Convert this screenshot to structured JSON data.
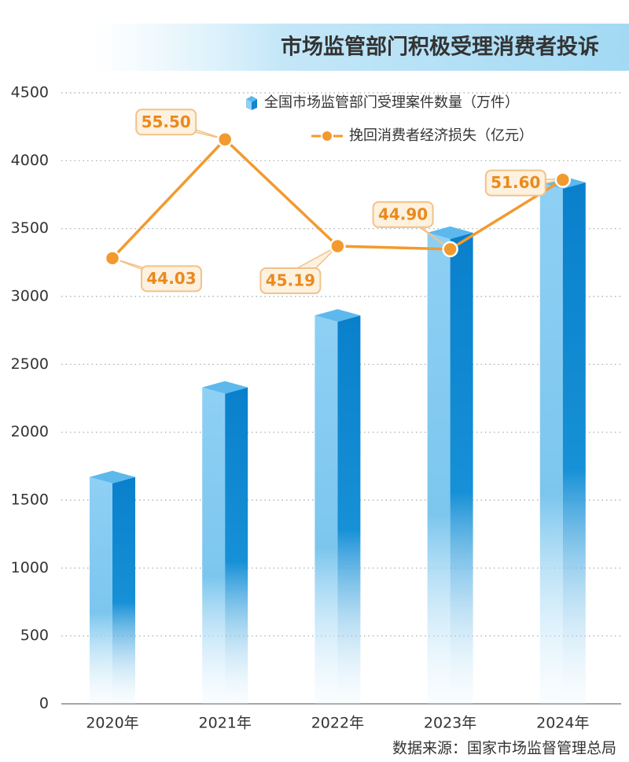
{
  "chart_data": {
    "type": "bar",
    "title": "市场监管部门积极受理消费者投诉",
    "source": "数据来源：国家市场监督管理总局",
    "categories": [
      "2020年",
      "2021年",
      "2022年",
      "2023年",
      "2024年"
    ],
    "series": [
      {
        "name": "全国市场监管部门受理案件数量（万件）",
        "type": "bar",
        "color": "#1185cf",
        "values": [
          1670,
          2330,
          2860,
          3470,
          3840
        ]
      },
      {
        "name": "挽回消费者经济损失（亿元）",
        "type": "line",
        "axis": "y2",
        "color": "#f29a2e",
        "values": [
          44.03,
          55.5,
          45.19,
          44.9,
          51.6
        ],
        "value_labels": [
          "44.03",
          "55.50",
          "45.19",
          "44.90",
          "51.60"
        ]
      }
    ],
    "ylim": [
      0,
      4500
    ],
    "yticks": [
      0,
      500,
      1000,
      1500,
      2000,
      2500,
      3000,
      3500,
      4000,
      4500
    ],
    "y2lim": [
      1,
      60
    ],
    "grid": true
  }
}
